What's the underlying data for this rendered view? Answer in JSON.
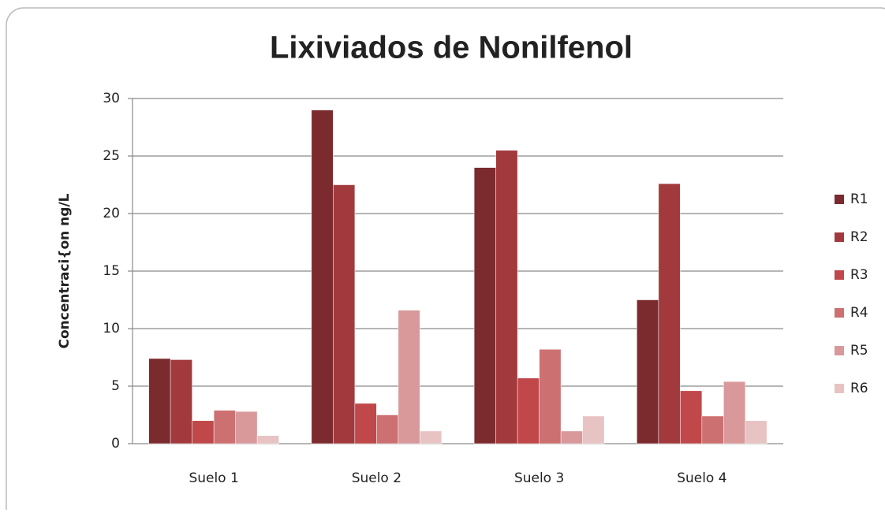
{
  "chart_data": {
    "type": "bar",
    "title": "Lixiviados de Nonilfenol",
    "y_label": "Concentraci{on ng/L",
    "categories": [
      "Suelo 1",
      "Suelo 2",
      "Suelo 3",
      "Suelo 4"
    ],
    "series": [
      {
        "name": "R1",
        "color": "#7b2a2e",
        "values": [
          7.4,
          29,
          24,
          12.5
        ]
      },
      {
        "name": "R2",
        "color": "#a23a3d",
        "values": [
          7.3,
          22.5,
          25.5,
          22.6
        ]
      },
      {
        "name": "R3",
        "color": "#c0474a",
        "values": [
          2.0,
          3.5,
          5.7,
          4.6
        ]
      },
      {
        "name": "R4",
        "color": "#cd7072",
        "values": [
          2.9,
          2.5,
          8.2,
          2.4
        ]
      },
      {
        "name": "R5",
        "color": "#d9999a",
        "values": [
          2.8,
          11.6,
          1.1,
          5.4
        ]
      },
      {
        "name": "R6",
        "color": "#e8c3c3",
        "values": [
          0.7,
          1.1,
          2.4,
          2.0
        ]
      }
    ],
    "ylim": [
      0,
      30
    ],
    "yticks": [
      0,
      5,
      10,
      15,
      20,
      25,
      30
    ],
    "grid": true,
    "legend": "right"
  }
}
